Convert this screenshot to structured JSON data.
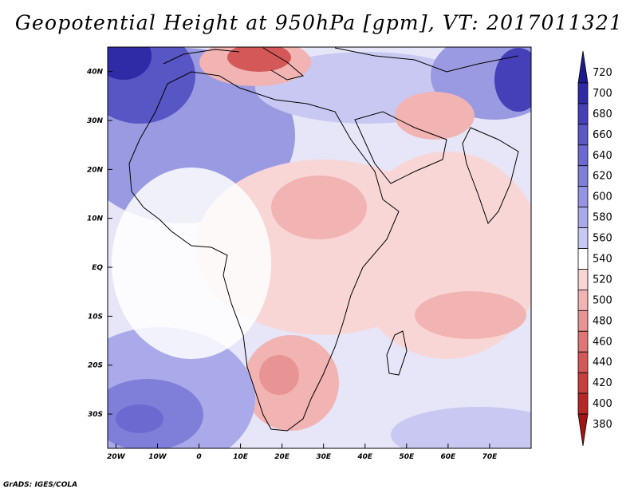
{
  "title": "Geopotential Height at 950hPa [gpm], VT: 2017011321",
  "credit": "GrADS: IGES/COLA",
  "map": {
    "projection": "lat-lon",
    "lon_range": [
      -22,
      80
    ],
    "lat_range": [
      -37,
      45
    ],
    "lon_ticks": [
      {
        "value": -20,
        "label": "20W"
      },
      {
        "value": -10,
        "label": "10W"
      },
      {
        "value": 0,
        "label": "0"
      },
      {
        "value": 10,
        "label": "10E"
      },
      {
        "value": 20,
        "label": "20E"
      },
      {
        "value": 30,
        "label": "30E"
      },
      {
        "value": 40,
        "label": "40E"
      },
      {
        "value": 50,
        "label": "50E"
      },
      {
        "value": 60,
        "label": "60E"
      },
      {
        "value": 70,
        "label": "70E"
      }
    ],
    "lat_ticks": [
      {
        "value": 40,
        "label": "40N"
      },
      {
        "value": 30,
        "label": "30N"
      },
      {
        "value": 20,
        "label": "20N"
      },
      {
        "value": 10,
        "label": "10N"
      },
      {
        "value": 0,
        "label": "EQ"
      },
      {
        "value": -10,
        "label": "10S"
      },
      {
        "value": -20,
        "label": "20S"
      },
      {
        "value": -30,
        "label": "30S"
      }
    ]
  },
  "colorbar": {
    "labels": [
      "720",
      "700",
      "680",
      "660",
      "640",
      "620",
      "600",
      "580",
      "560",
      "540",
      "520",
      "500",
      "480",
      "460",
      "440",
      "420",
      "400",
      "380"
    ],
    "colors": [
      "#1e1a8e",
      "#2f2aa6",
      "#4540b8",
      "#5a58c6",
      "#6c6ad0",
      "#7f7fd9",
      "#9494e2",
      "#aaaaeb",
      "#c8c8f2",
      "#ffffff",
      "#f8d6d6",
      "#f2b3b3",
      "#e99494",
      "#e07575",
      "#d45858",
      "#c83e3e",
      "#b82727",
      "#a31515"
    ]
  }
}
